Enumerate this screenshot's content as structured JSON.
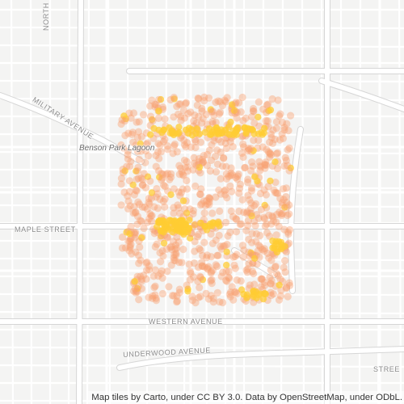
{
  "map": {
    "labels": {
      "north": "NORTH",
      "military_avenue": "MILITARY AVENUE",
      "park": "Benson Park Lagoon",
      "maple_street": "MAPLE STREET",
      "western_avenue": "WESTERN AVENUE",
      "underwood_avenue": "UNDERWOOD AVENUE",
      "street_edge": "STREE"
    },
    "attribution": "Map tiles by Carto, under CC BY 3.0. Data by OpenStreetMap, under ODbL.",
    "colors": {
      "background": "#f4f4f3",
      "road": "#ffffff",
      "road_casing": "#dcdcdc",
      "heat_low": "#f8a070",
      "heat_high": "#ffcc33"
    }
  }
}
